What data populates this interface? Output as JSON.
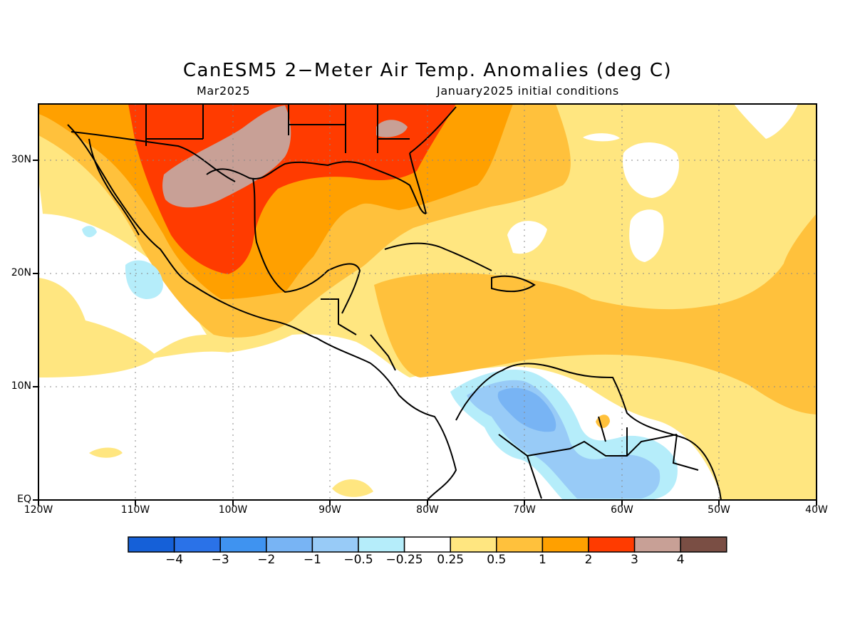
{
  "title": "CanESM5 2−Meter Air Temp. Anomalies (deg C)",
  "subtitle_left": "Mar2025",
  "subtitle_right": "January2025 initial conditions",
  "lat_labels": [
    "30N",
    "20N",
    "10N",
    "EQ"
  ],
  "lon_labels": [
    "120W",
    "110W",
    "100W",
    "90W",
    "80W",
    "70W",
    "60W",
    "50W",
    "40W"
  ],
  "colorbar": {
    "labels": [
      "−4",
      "−3",
      "−2",
      "−1",
      "−0.5",
      "−0.25",
      "0.25",
      "0.5",
      "1",
      "2",
      "3",
      "4"
    ],
    "colors": [
      "#1560d8",
      "#2a72e8",
      "#3f93f0",
      "#78b4f4",
      "#98cbf7",
      "#b5edfa",
      "#ffffff",
      "#ffe680",
      "#ffc13c",
      "#ffa000",
      "#ff3b00",
      "#c8a096",
      "#7a4e44"
    ]
  },
  "map_extent": {
    "lon": [
      -120,
      -40
    ],
    "lat": [
      0,
      35
    ]
  },
  "anomaly_colors": {
    "white": "#ffffff",
    "light_yellow": "#ffe680",
    "yellow_orange": "#ffc13c",
    "orange": "#ffa000",
    "red": "#ff3b00",
    "brown_pink": "#c8a096",
    "light_blue": "#b5edfa",
    "blue": "#98cbf7",
    "mid_blue": "#78b4f4"
  }
}
